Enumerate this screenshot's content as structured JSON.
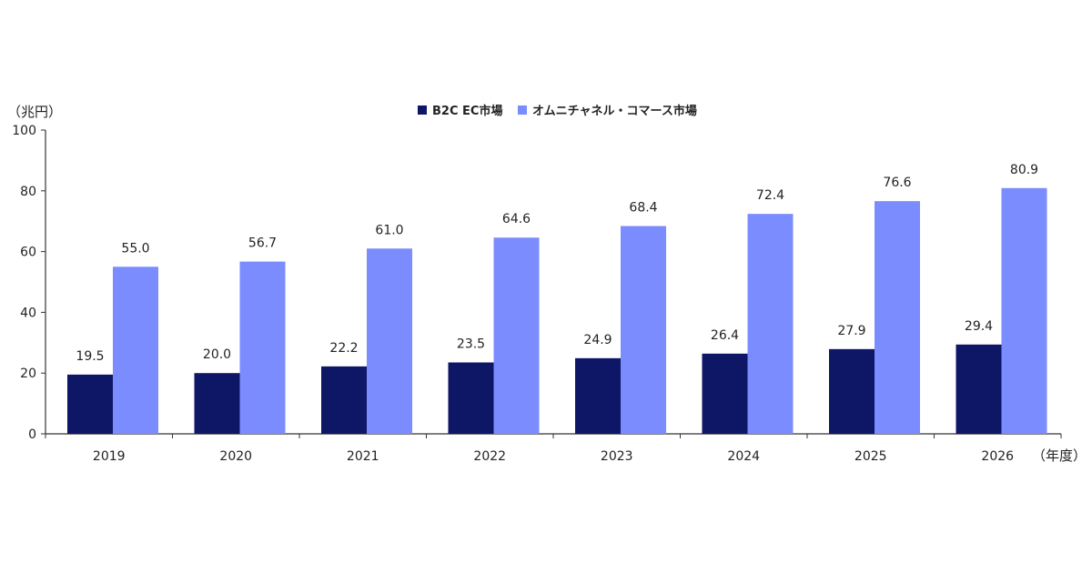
{
  "chart_data": {
    "type": "bar",
    "y_unit_label": "（兆円）",
    "x_unit_label": "（年度）",
    "categories": [
      "2019",
      "2020",
      "2021",
      "2022",
      "2023",
      "2024",
      "2025",
      "2026"
    ],
    "series": [
      {
        "name": "B2C EC市場",
        "color": "#0e1666",
        "values": [
          19.5,
          20.0,
          22.2,
          23.5,
          24.9,
          26.4,
          27.9,
          29.4
        ],
        "labels": [
          "19.5",
          "20.0",
          "22.2",
          "23.5",
          "24.9",
          "26.4",
          "27.9",
          "29.4"
        ]
      },
      {
        "name": "オムニチャネル・コマース市場",
        "color": "#7b8cff",
        "values": [
          55.0,
          56.7,
          61.0,
          64.6,
          68.4,
          72.4,
          76.6,
          80.9
        ],
        "labels": [
          "55.0",
          "56.7",
          "61.0",
          "64.6",
          "68.4",
          "72.4",
          "76.6",
          "80.9"
        ]
      }
    ],
    "ylim": [
      0,
      100
    ],
    "yticks": [
      "0",
      "20",
      "40",
      "60",
      "80",
      "100"
    ],
    "legend_position": "top-center",
    "grid": false
  }
}
